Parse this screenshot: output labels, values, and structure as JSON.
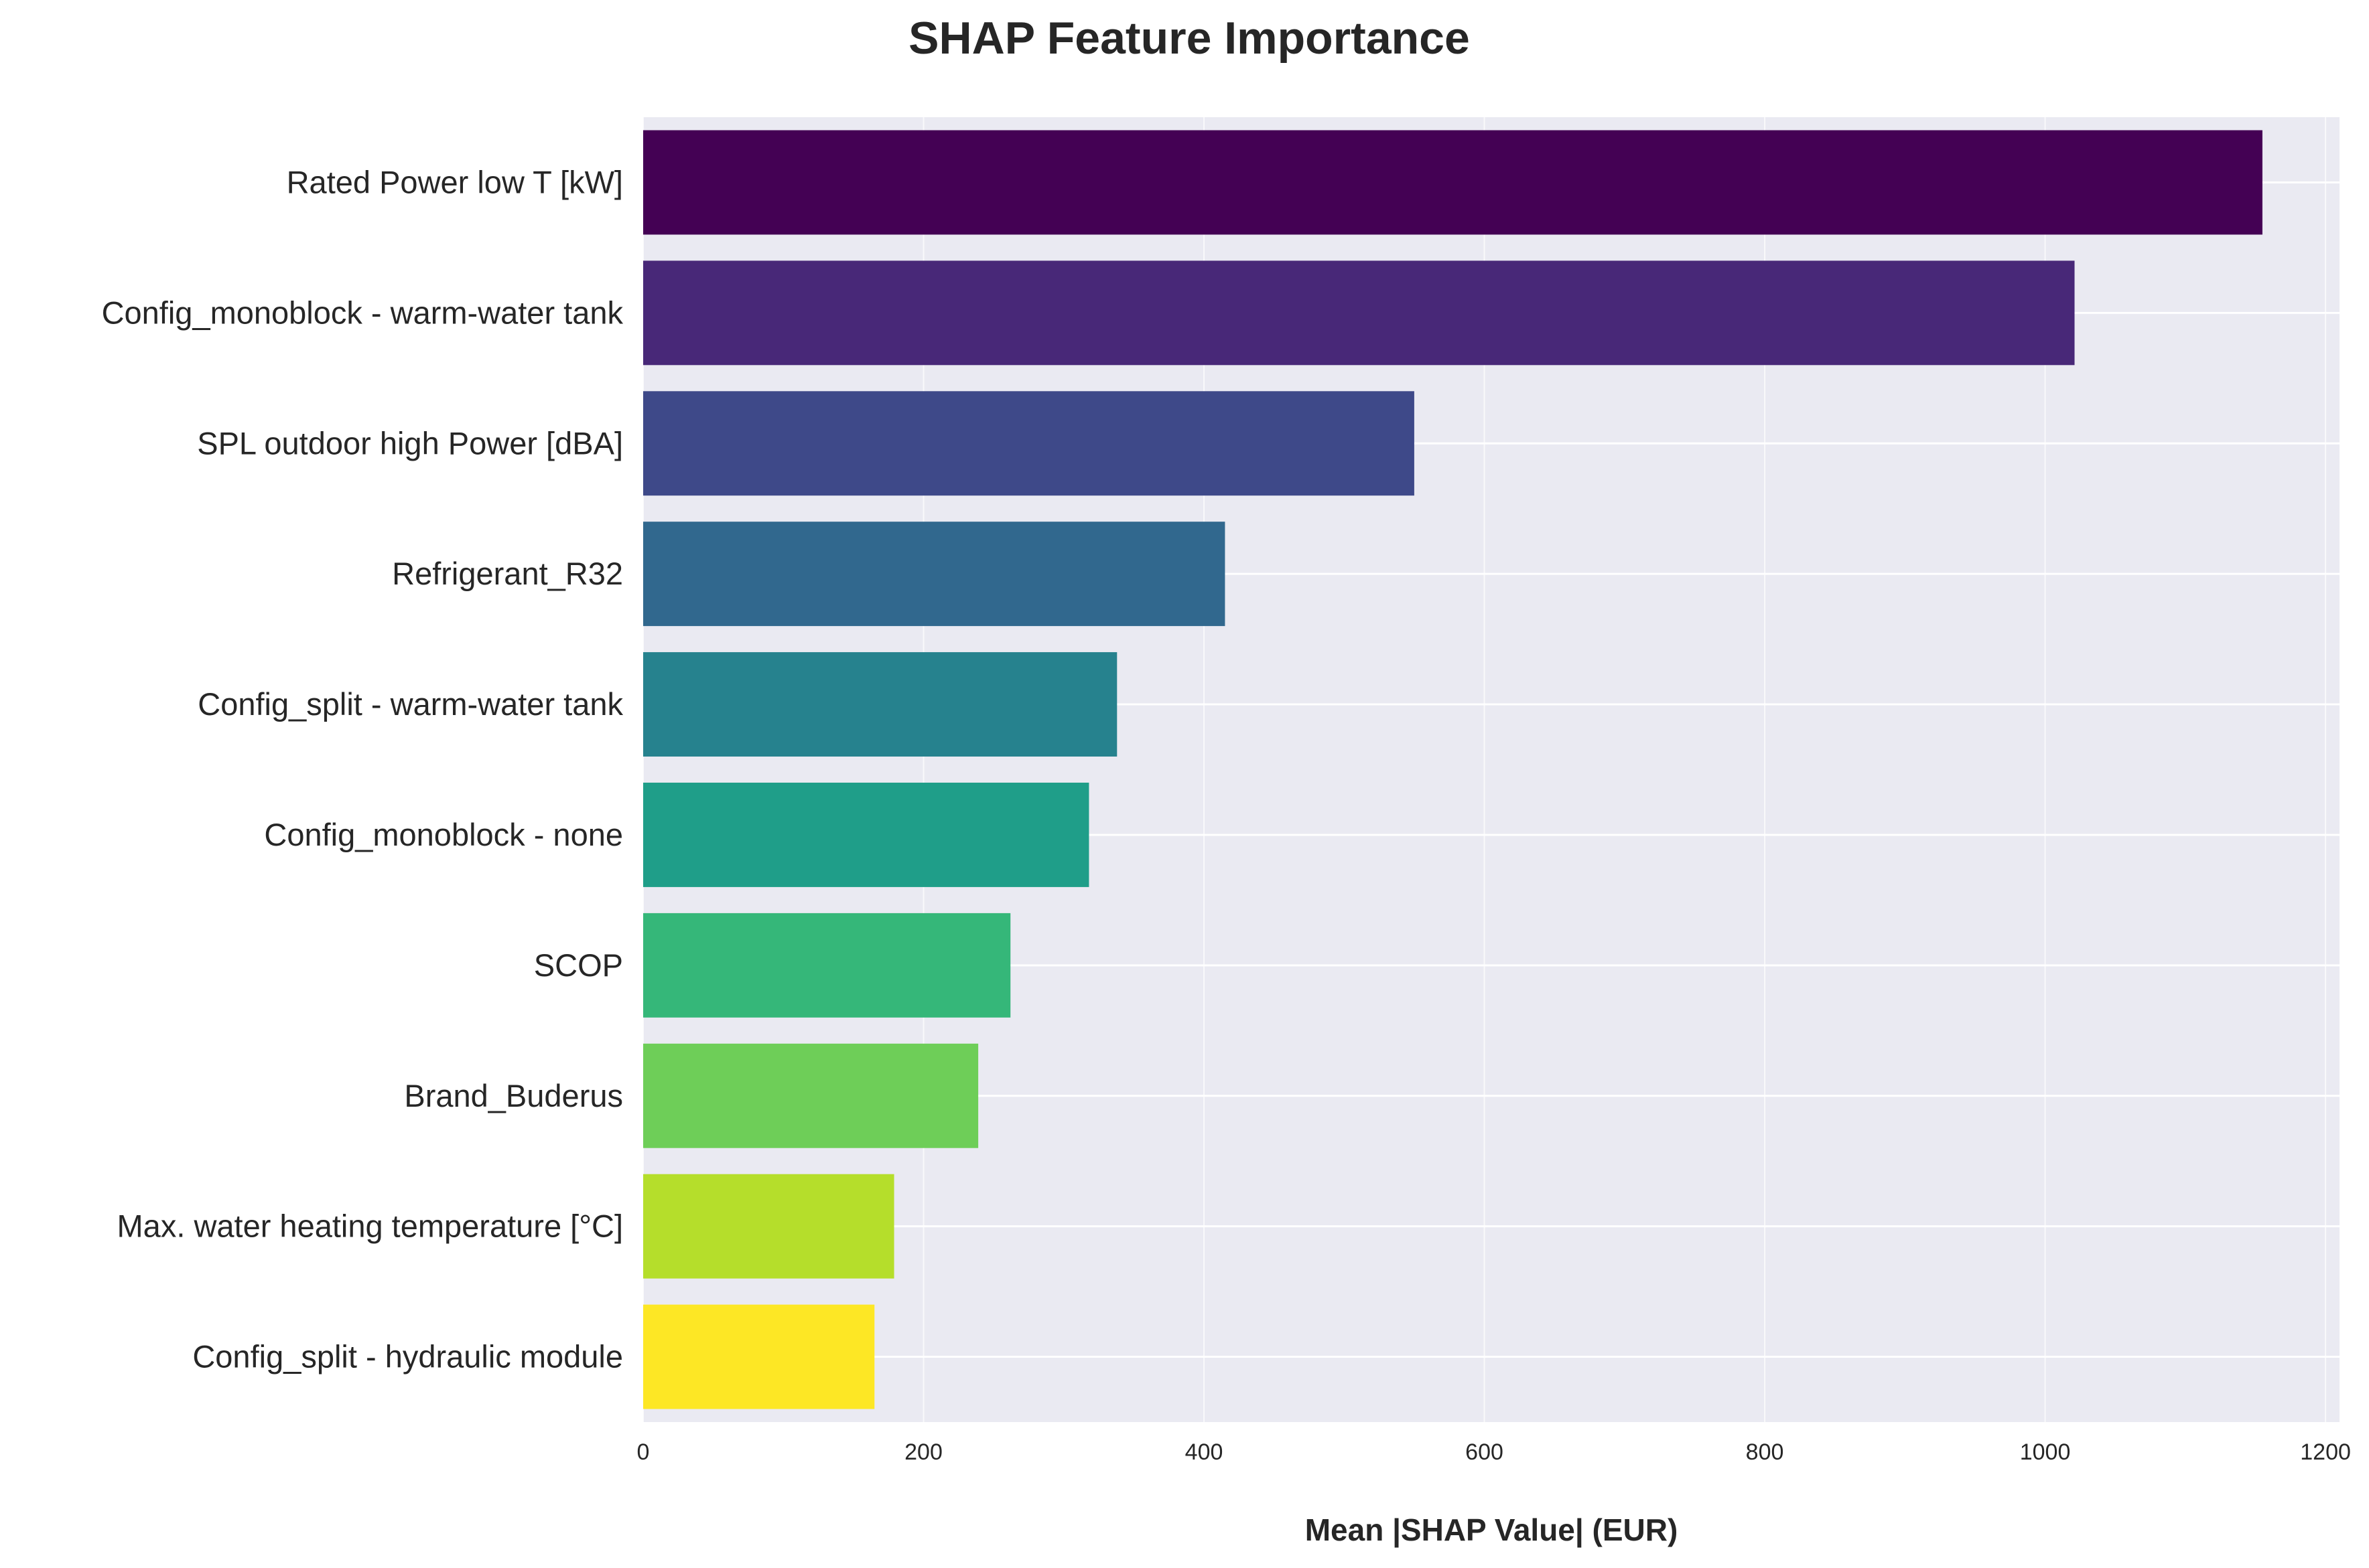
{
  "chart_data": {
    "type": "bar",
    "orientation": "horizontal",
    "title": "SHAP Feature Importance",
    "xlabel": "Mean |SHAP Value| (EUR)",
    "ylabel": "",
    "xlim": [
      0,
      1210
    ],
    "xticks": [
      0,
      200,
      400,
      600,
      800,
      1000,
      1200
    ],
    "xtick_labels": [
      "0",
      "200",
      "400",
      "600",
      "800",
      "1000",
      "1200"
    ],
    "grid": true,
    "background_color": "#eaeaf2",
    "grid_color": "#ffffff",
    "categories": [
      "Rated Power low T [kW]",
      "Config_monoblock - warm-water tank",
      "SPL outdoor high Power [dBA]",
      "Refrigerant_R32",
      "Config_split - warm-water tank",
      "Config_monoblock - none",
      "SCOP",
      "Brand_Buderus",
      "Max. water heating temperature [°C]",
      "Config_split - hydraulic module"
    ],
    "values": [
      1155,
      1021,
      550,
      415,
      338,
      318,
      262,
      239,
      179,
      165
    ],
    "colors": [
      "#440154",
      "#482878",
      "#3e4989",
      "#31688e",
      "#26828e",
      "#1f9e89",
      "#35b779",
      "#6ece58",
      "#b5de2b",
      "#fde725"
    ]
  }
}
